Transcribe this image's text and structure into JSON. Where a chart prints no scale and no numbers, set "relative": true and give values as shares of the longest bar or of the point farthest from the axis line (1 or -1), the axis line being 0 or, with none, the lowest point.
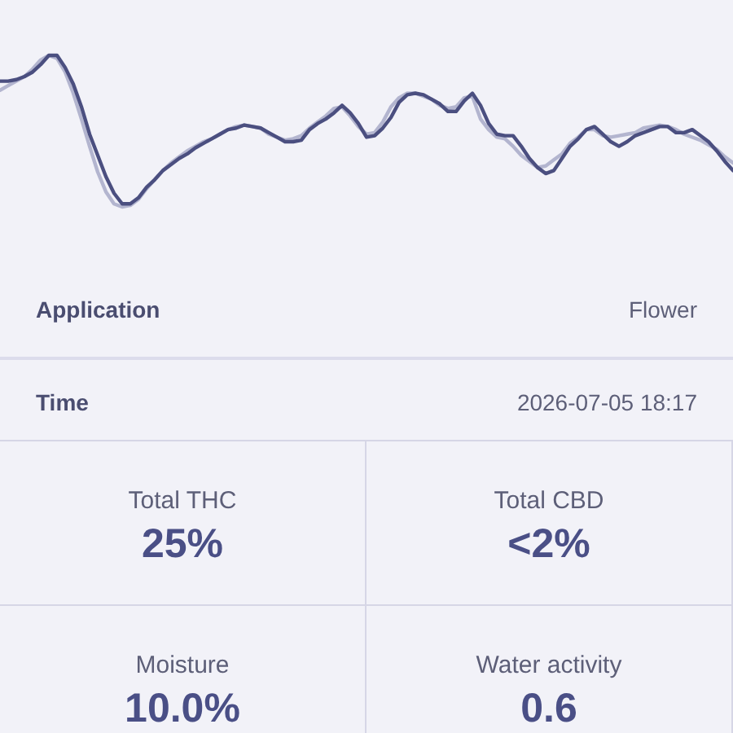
{
  "chart_data": [
    {
      "type": "line",
      "relative": true,
      "categories": [
        null,
        null,
        null,
        null,
        null,
        null,
        null,
        null,
        null,
        null,
        null,
        null,
        null,
        null,
        null,
        null,
        null,
        null,
        null,
        null,
        null,
        null,
        null,
        null,
        null,
        null,
        null,
        null,
        null,
        null,
        null,
        null,
        null,
        null,
        null,
        null,
        null,
        null,
        null,
        null,
        null,
        null,
        null,
        null,
        null,
        null,
        null,
        null,
        null,
        null,
        null,
        null,
        null,
        null,
        null,
        null,
        null,
        null,
        null,
        null,
        null,
        null,
        null,
        null,
        null,
        null,
        null,
        null,
        null,
        null,
        null,
        null,
        null,
        null,
        null,
        null,
        null,
        null,
        null,
        null,
        null,
        null,
        null,
        null,
        null,
        null,
        null,
        null,
        null,
        null,
        null
      ],
      "series": [
        {
          "color": "#4b4f80",
          "values": [
            0.83,
            0.83,
            0.84,
            0.86,
            0.89,
            0.94,
            1.0,
            1.0,
            0.92,
            0.81,
            0.66,
            0.48,
            0.34,
            0.2,
            0.09,
            0.02,
            0.02,
            0.06,
            0.13,
            0.18,
            0.24,
            0.28,
            0.32,
            0.35,
            0.39,
            0.42,
            0.45,
            0.48,
            0.51,
            0.52,
            0.54,
            0.53,
            0.52,
            0.49,
            0.46,
            0.43,
            0.43,
            0.44,
            0.51,
            0.55,
            0.58,
            0.62,
            0.67,
            0.62,
            0.55,
            0.46,
            0.47,
            0.52,
            0.59,
            0.69,
            0.74,
            0.75,
            0.74,
            0.71,
            0.68,
            0.63,
            0.63,
            0.7,
            0.75,
            0.67,
            0.55,
            0.48,
            0.47,
            0.47,
            0.4,
            0.32,
            0.26,
            0.22,
            0.24,
            0.32,
            0.4,
            0.45,
            0.51,
            0.53,
            0.48,
            0.43,
            0.4,
            0.43,
            0.47,
            0.49,
            0.51,
            0.53,
            0.53,
            0.49,
            0.49,
            0.51,
            0.47,
            0.43,
            0.37,
            0.3,
            0.24
          ]
        },
        {
          "color": "#b3b5cf",
          "values": [
            0.77,
            0.8,
            0.83,
            0.86,
            0.91,
            0.97,
            1.0,
            0.98,
            0.89,
            0.75,
            0.58,
            0.4,
            0.23,
            0.1,
            0.02,
            0,
            0.01,
            0.05,
            0.12,
            0.18,
            0.24,
            0.29,
            0.33,
            0.37,
            0.4,
            0.43,
            0.45,
            0.48,
            0.51,
            0.53,
            0.54,
            0.53,
            0.52,
            0.48,
            0.46,
            0.44,
            0.45,
            0.47,
            0.52,
            0.56,
            0.6,
            0.65,
            0.66,
            0.6,
            0.53,
            0.48,
            0.49,
            0.56,
            0.66,
            0.72,
            0.75,
            0.75,
            0.73,
            0.71,
            0.67,
            0.65,
            0.66,
            0.72,
            0.73,
            0.58,
            0.51,
            0.46,
            0.45,
            0.4,
            0.34,
            0.3,
            0.26,
            0.27,
            0.31,
            0.35,
            0.42,
            0.46,
            0.51,
            0.51,
            0.47,
            0.46,
            0.47,
            0.48,
            0.49,
            0.52,
            0.53,
            0.54,
            0.53,
            0.51,
            0.48,
            0.46,
            0.44,
            0.41,
            0.38,
            0.33,
            0.29
          ]
        }
      ]
    },
    {
      "type": "other",
      "annotations": [
        "Application",
        "Flower",
        "Time",
        "2026-07-05 18:17",
        "Total THC",
        "25%",
        "Total CBD",
        "<2%",
        "Moisture",
        "10.0%",
        "Water activity",
        "0.6"
      ]
    }
  ]
}
